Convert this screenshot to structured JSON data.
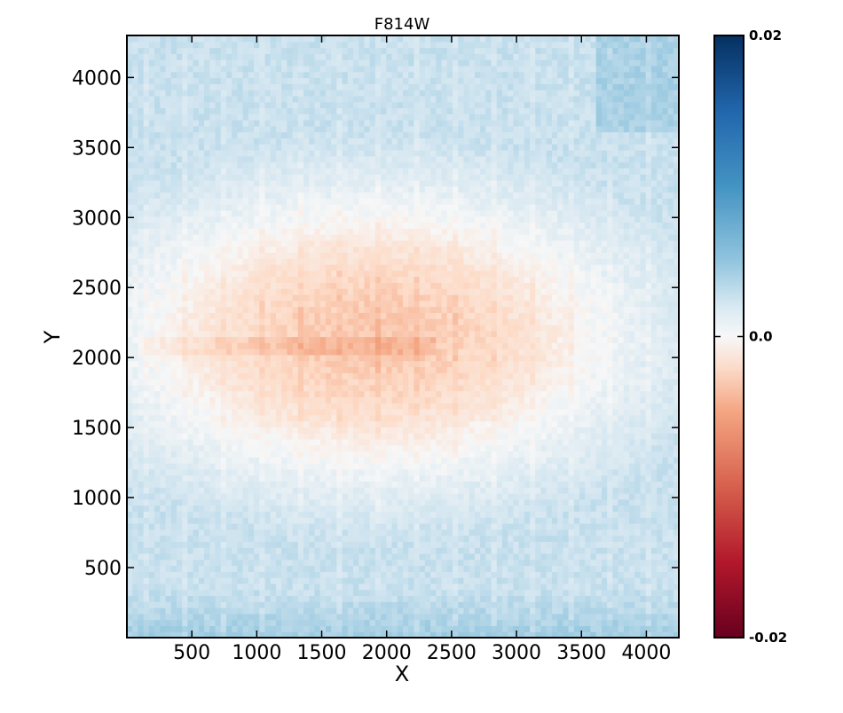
{
  "chart_data": {
    "type": "heatmap",
    "title": "F814W",
    "xlabel": "X",
    "ylabel": "Y",
    "xlim": [
      0,
      4250
    ],
    "ylim": [
      0,
      4300
    ],
    "xticks": [
      500,
      1000,
      1500,
      2000,
      2500,
      3000,
      3500,
      4000
    ],
    "yticks": [
      500,
      1000,
      1500,
      2000,
      2500,
      3000,
      3500,
      4000
    ],
    "grid": false,
    "colormap": "RdBu",
    "colorbar": {
      "vmin": -0.02,
      "vmax": 0.02,
      "tick_labels": [
        {
          "value": 0.02,
          "label": "0.02"
        },
        {
          "value": 0.0,
          "label": "0.0"
        },
        {
          "value": -0.02,
          "label": "-0.02"
        }
      ]
    },
    "data_extent": {
      "x": [
        0,
        4250
      ],
      "y": [
        0,
        4300
      ]
    },
    "field_description": "Center region (x ~800-3000, y ~1700-2800) negative around -0.005; outer regions positive around +0.004 to +0.006; strongest positive near the bottom (y < 300) and top-right corner.",
    "colors": {
      "min": "#67001f",
      "low": "#f4a582",
      "mid": "#f7f7f7",
      "high": "#92c5de",
      "max": "#053061"
    }
  }
}
